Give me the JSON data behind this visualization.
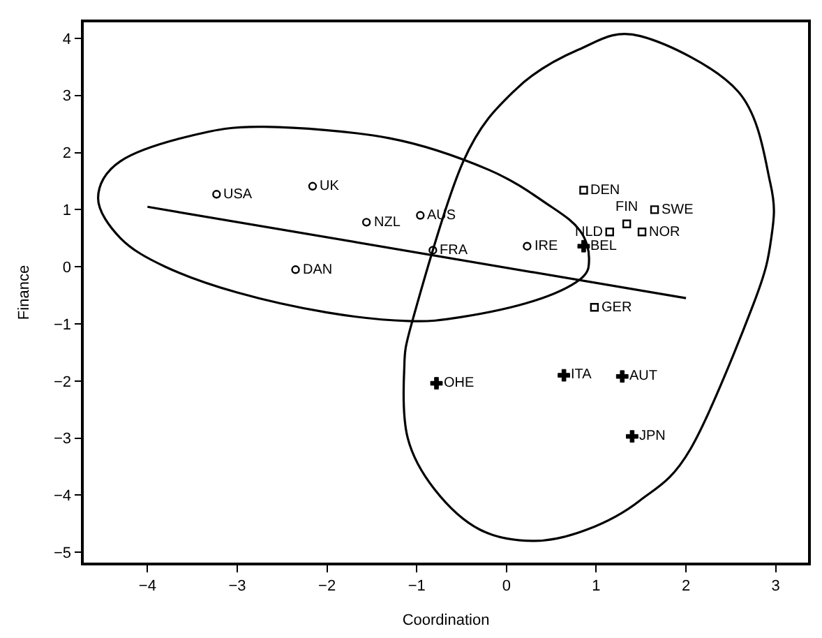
{
  "chart_data": {
    "type": "scatter",
    "xlabel": "Coordination",
    "ylabel": "Finance",
    "xlim": [
      -4.71,
      3.36
    ],
    "xticks": [
      -4,
      -3,
      -2,
      -1,
      0,
      1,
      2,
      3
    ],
    "ylim": [
      -5.18,
      4.28
    ],
    "yticks": [
      -5,
      -4,
      -3,
      -2,
      -1,
      0,
      1,
      2,
      3,
      4
    ],
    "series": [
      {
        "marker": "circle",
        "color": "#000000",
        "x": [
          -3.23,
          -2.16,
          -1.56,
          -0.96,
          -2.35,
          -0.82,
          0.23
        ],
        "values": [
          1.27,
          1.41,
          0.78,
          0.9,
          -0.05,
          0.29,
          0.36
        ]
      },
      {
        "marker": "square",
        "color": "#000000",
        "x": [
          0.86,
          1.65,
          1.34,
          1.15,
          1.51,
          0.98
        ],
        "values": [
          1.34,
          1.0,
          0.75,
          0.61,
          0.61,
          -0.71
        ]
      },
      {
        "marker": "cross",
        "color": "#000000",
        "x": [
          0.86,
          -0.78,
          0.64,
          1.29,
          1.4
        ],
        "values": [
          0.36,
          -2.04,
          -1.9,
          -1.92,
          -2.97
        ]
      },
      {
        "type": "line",
        "marker": "none",
        "line_style": "solid",
        "color": "#000000",
        "x": [
          -4.0,
          2.0
        ],
        "values": [
          1.05,
          -0.55
        ]
      }
    ],
    "annotations": [
      {
        "text": "USA",
        "x": -3.23,
        "y": 1.27
      },
      {
        "text": "UK",
        "x": -2.16,
        "y": 1.41
      },
      {
        "text": "NZL",
        "x": -1.56,
        "y": 0.78
      },
      {
        "text": "AUS",
        "x": -0.96,
        "y": 0.9
      },
      {
        "text": "DAN",
        "x": -2.35,
        "y": -0.05
      },
      {
        "text": "FRA",
        "x": -0.82,
        "y": 0.29
      },
      {
        "text": "IRE",
        "x": 0.23,
        "y": 0.36
      },
      {
        "text": "BEL",
        "x": 0.86,
        "y": 0.36
      },
      {
        "text": "DEN",
        "x": 0.86,
        "y": 1.34
      },
      {
        "text": "SWE",
        "x": 1.65,
        "y": 1.0
      },
      {
        "text": "FIN",
        "x": 1.34,
        "y": 0.75
      },
      {
        "text": "NLD",
        "x": 1.15,
        "y": 0.61
      },
      {
        "text": "NOR",
        "x": 1.51,
        "y": 0.61
      },
      {
        "text": "GER",
        "x": 0.98,
        "y": -0.71
      },
      {
        "text": "OHE",
        "x": -0.78,
        "y": -2.04
      },
      {
        "text": "ITA",
        "x": 0.64,
        "y": -1.9
      },
      {
        "text": "AUT",
        "x": 1.29,
        "y": -1.92
      },
      {
        "text": "JPN",
        "x": 1.4,
        "y": -2.97
      }
    ]
  }
}
